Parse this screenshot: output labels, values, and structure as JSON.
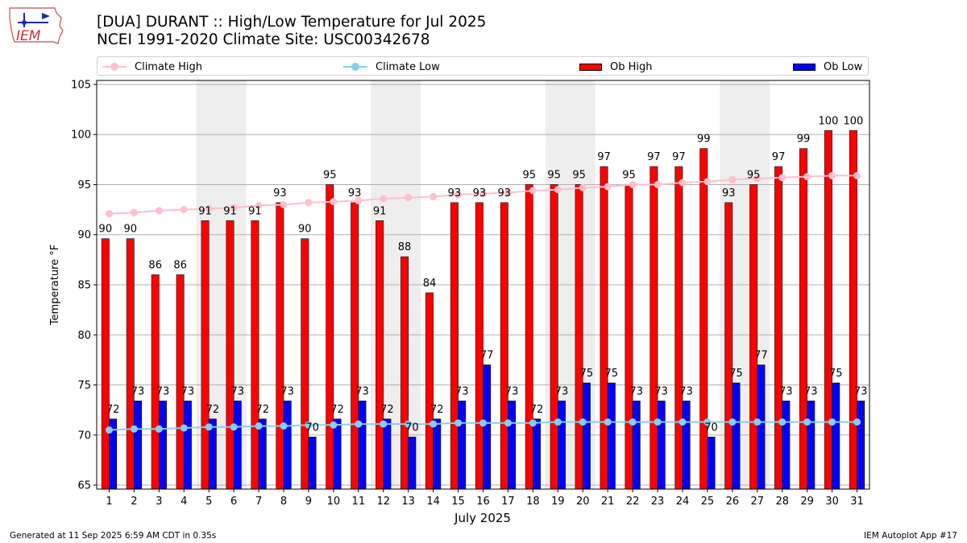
{
  "logo": {
    "text": "IEM"
  },
  "header": {
    "title": "[DUA] DURANT :: High/Low Temperature for Jul 2025",
    "subtitle": "NCEI 1991-2020 Climate Site: USC00342678"
  },
  "legend": {
    "climate_high": "Climate High",
    "climate_low": "Climate Low",
    "ob_high": "Ob High",
    "ob_low": "Ob Low"
  },
  "colors": {
    "climate_high": "#ffc0cb",
    "climate_low": "#87ceeb",
    "ob_high": "#ff0000",
    "ob_low": "#0000ff",
    "weekend_shade": "#eeeeee"
  },
  "footer": {
    "left": "Generated at 11 Sep 2025 6:59 AM CDT in 0.35s",
    "right": "IEM Autoplot App #17"
  },
  "chart_data": {
    "type": "bar",
    "xlabel": "July 2025",
    "ylabel": "Temperature °F",
    "ylim": [
      64.6,
      105.4
    ],
    "yticks": [
      65,
      70,
      75,
      80,
      85,
      90,
      95,
      100,
      105
    ],
    "grid": true,
    "legend_position": "top",
    "categories": [
      "1",
      "2",
      "3",
      "4",
      "5",
      "6",
      "7",
      "8",
      "9",
      "10",
      "11",
      "12",
      "13",
      "14",
      "15",
      "16",
      "17",
      "18",
      "19",
      "20",
      "21",
      "22",
      "23",
      "24",
      "25",
      "26",
      "27",
      "28",
      "29",
      "30",
      "31"
    ],
    "shaded_days": [
      [
        5,
        6
      ],
      [
        12,
        13
      ],
      [
        19,
        20
      ],
      [
        26,
        27
      ]
    ],
    "series": [
      {
        "name": "Ob High",
        "kind": "bar",
        "values": [
          90,
          90,
          86,
          86,
          91,
          91,
          91,
          93,
          90,
          95,
          93,
          91,
          88,
          84,
          93,
          93,
          93,
          95,
          95,
          95,
          97,
          95,
          97,
          97,
          99,
          93,
          95,
          97,
          99,
          100,
          100
        ],
        "plotted": [
          89.6,
          89.6,
          86.0,
          86.0,
          91.4,
          91.4,
          91.4,
          93.2,
          89.6,
          95.0,
          93.2,
          91.4,
          87.8,
          84.2,
          93.2,
          93.2,
          93.2,
          95.0,
          95.0,
          95.0,
          96.8,
          95.0,
          96.8,
          96.8,
          98.6,
          93.2,
          95.0,
          96.8,
          98.6,
          100.4,
          100.4
        ]
      },
      {
        "name": "Ob Low",
        "kind": "bar",
        "values": [
          72,
          73,
          73,
          73,
          72,
          73,
          72,
          73,
          70,
          72,
          73,
          72,
          70,
          72,
          73,
          77,
          73,
          72,
          73,
          75,
          75,
          73,
          73,
          73,
          70,
          75,
          77,
          73,
          73,
          75,
          73
        ],
        "plotted": [
          71.6,
          73.4,
          73.4,
          73.4,
          71.6,
          73.4,
          71.6,
          73.4,
          69.8,
          71.6,
          73.4,
          71.6,
          69.8,
          71.6,
          73.4,
          77.0,
          73.4,
          71.6,
          73.4,
          75.2,
          75.2,
          73.4,
          73.4,
          73.4,
          69.8,
          75.2,
          77.0,
          73.4,
          73.4,
          75.2,
          73.4
        ]
      },
      {
        "name": "Climate High",
        "kind": "line",
        "values": [
          92.1,
          92.2,
          92.4,
          92.5,
          92.6,
          92.7,
          92.9,
          93.0,
          93.2,
          93.3,
          93.4,
          93.6,
          93.7,
          93.8,
          94.0,
          94.1,
          94.2,
          94.4,
          94.5,
          94.7,
          94.8,
          95.0,
          95.0,
          95.2,
          95.3,
          95.5,
          95.6,
          95.7,
          95.8,
          95.9,
          95.9
        ]
      },
      {
        "name": "Climate Low",
        "kind": "line",
        "values": [
          70.5,
          70.6,
          70.6,
          70.7,
          70.8,
          70.8,
          70.9,
          70.9,
          71.0,
          71.0,
          71.1,
          71.1,
          71.1,
          71.1,
          71.2,
          71.2,
          71.2,
          71.2,
          71.3,
          71.3,
          71.3,
          71.3,
          71.3,
          71.3,
          71.3,
          71.3,
          71.3,
          71.3,
          71.3,
          71.3,
          71.3
        ]
      }
    ]
  }
}
